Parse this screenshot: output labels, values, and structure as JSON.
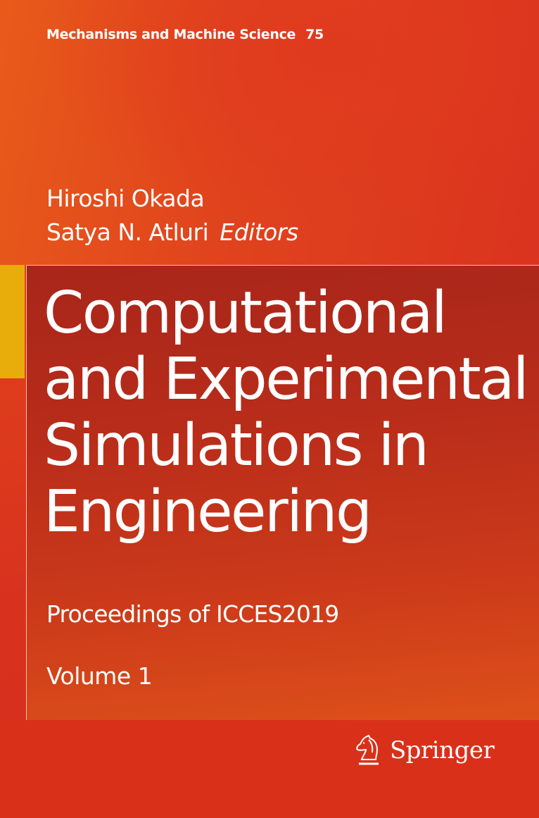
{
  "series": {
    "name": "Mechanisms and Machine Science",
    "number": "75"
  },
  "editors": {
    "names": [
      "Hiroshi Okada",
      "Satya N. Atluri"
    ],
    "role": "Editors"
  },
  "title": {
    "lines": [
      "Computational",
      "and Experimental",
      "Simulations in",
      "Engineering"
    ]
  },
  "subtitle": "Proceedings of ICCES2019",
  "volume": "Volume 1",
  "publisher": {
    "name": "Springer",
    "icon": "springer-horse-logo"
  },
  "colors": {
    "background": "#e0401c",
    "frame": "#b02a1a",
    "accent_bar": "#e8ad0a",
    "bottom_band": "#d9301a",
    "text": "#ffffff"
  }
}
